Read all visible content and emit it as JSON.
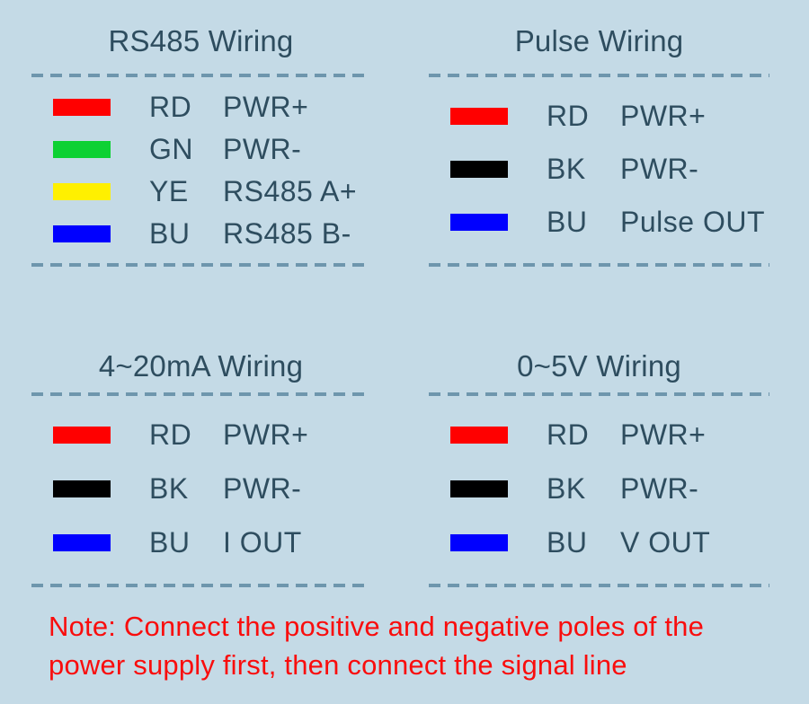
{
  "page": {
    "colors": {
      "background": "#c4dae6",
      "text": "#2e4d5f",
      "dash": "#6e96ad",
      "note": "#f90d0d"
    }
  },
  "sections": [
    {
      "title": "RS485 Wiring",
      "rows": [
        {
          "wire_color_name": "red",
          "wire_color": "#ff0000",
          "abbr": "RD",
          "signal": "PWR+"
        },
        {
          "wire_color_name": "green",
          "wire_color": "#0dd133",
          "abbr": "GN",
          "signal": "PWR-"
        },
        {
          "wire_color_name": "yellow",
          "wire_color": "#fff000",
          "abbr": "YE",
          "signal": "RS485 A+"
        },
        {
          "wire_color_name": "blue",
          "wire_color": "#0000ff",
          "abbr": "BU",
          "signal": "RS485 B-"
        }
      ]
    },
    {
      "title": "Pulse Wiring",
      "rows": [
        {
          "wire_color_name": "red",
          "wire_color": "#ff0000",
          "abbr": "RD",
          "signal": "PWR+"
        },
        {
          "wire_color_name": "black",
          "wire_color": "#000000",
          "abbr": "BK",
          "signal": "PWR-"
        },
        {
          "wire_color_name": "blue",
          "wire_color": "#0000ff",
          "abbr": "BU",
          "signal": "Pulse OUT"
        }
      ]
    },
    {
      "title": "4~20mA Wiring",
      "rows": [
        {
          "wire_color_name": "red",
          "wire_color": "#ff0000",
          "abbr": "RD",
          "signal": "PWR+"
        },
        {
          "wire_color_name": "black",
          "wire_color": "#000000",
          "abbr": "BK",
          "signal": "PWR-"
        },
        {
          "wire_color_name": "blue",
          "wire_color": "#0000ff",
          "abbr": "BU",
          "signal": "I OUT"
        }
      ]
    },
    {
      "title": "0~5V Wiring",
      "rows": [
        {
          "wire_color_name": "red",
          "wire_color": "#ff0000",
          "abbr": "RD",
          "signal": "PWR+"
        },
        {
          "wire_color_name": "black",
          "wire_color": "#000000",
          "abbr": "BK",
          "signal": "PWR-"
        },
        {
          "wire_color_name": "blue",
          "wire_color": "#0000ff",
          "abbr": "BU",
          "signal": "V OUT"
        }
      ]
    }
  ],
  "note": {
    "lines": [
      "Note: Connect the positive and negative poles of the",
      "power supply first, then connect the signal line"
    ]
  }
}
